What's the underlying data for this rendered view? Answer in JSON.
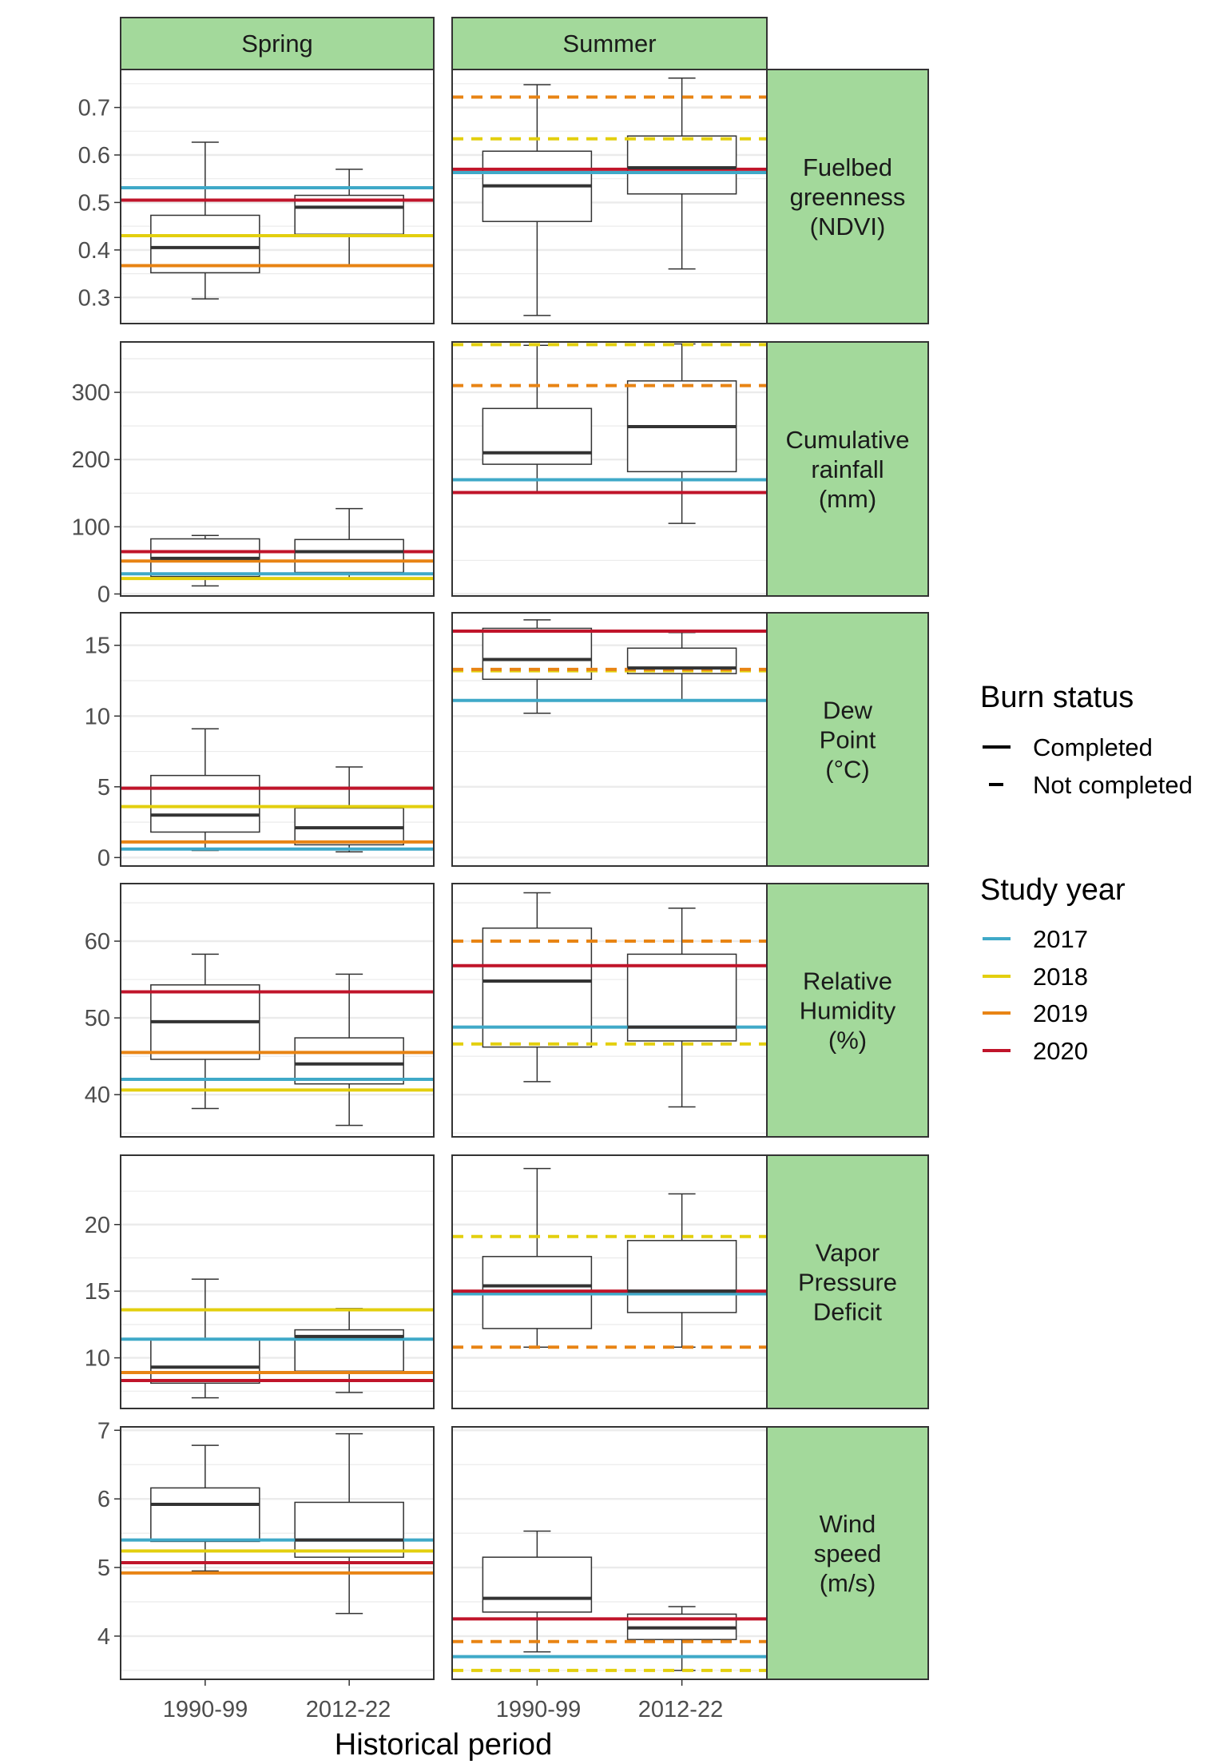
{
  "chart_data": {
    "type": "box",
    "columns": [
      "Spring",
      "Summer"
    ],
    "categories": [
      "1990-99",
      "2012-22"
    ],
    "xlabel": "Historical period",
    "colors": {
      "2017": "#3fa9c8",
      "2018": "#e3cf0e",
      "2019": "#e88414",
      "2020": "#c0142a",
      "strip_fill": "#a3d99b",
      "grid": "#ebebeb",
      "box_median": "#333333"
    },
    "legends": {
      "burn_status": {
        "title": "Burn status",
        "entries": [
          {
            "label": "Completed",
            "style": "solid"
          },
          {
            "label": "Not completed",
            "style": "dashed"
          }
        ]
      },
      "study_year": {
        "title": "Study year",
        "entries": [
          {
            "label": "2017",
            "color": "#3fa9c8"
          },
          {
            "label": "2018",
            "color": "#e3cf0e"
          },
          {
            "label": "2019",
            "color": "#e88414"
          },
          {
            "label": "2020",
            "color": "#c0142a"
          }
        ]
      }
    },
    "rows": [
      {
        "label": [
          "Fuelbed",
          "greenness",
          "(NDVI)"
        ],
        "ylim": [
          0.245,
          0.78
        ],
        "major_ticks": [
          0.3,
          0.4,
          0.5,
          0.6,
          0.7
        ],
        "minor_ticks": [
          0.25,
          0.35,
          0.45,
          0.55,
          0.65,
          0.75
        ],
        "tick_labels": [
          "0.3",
          "0.4",
          "0.5",
          "0.6",
          "0.7"
        ],
        "panels": {
          "Spring": {
            "boxes": [
              {
                "period": "1990-99",
                "min": 0.297,
                "q1": 0.352,
                "median": 0.405,
                "q3": 0.473,
                "max": 0.627
              },
              {
                "period": "2012-22",
                "min": 0.367,
                "q1": 0.433,
                "median": 0.49,
                "q3": 0.515,
                "max": 0.57
              }
            ],
            "lines": [
              {
                "year": "2017",
                "value": 0.531,
                "status": "Completed"
              },
              {
                "year": "2018",
                "value": 0.43,
                "status": "Completed"
              },
              {
                "year": "2019",
                "value": 0.367,
                "status": "Completed"
              },
              {
                "year": "2020",
                "value": 0.505,
                "status": "Completed"
              }
            ]
          },
          "Summer": {
            "boxes": [
              {
                "period": "1990-99",
                "min": 0.262,
                "q1": 0.46,
                "median": 0.535,
                "q3": 0.608,
                "max": 0.748
              },
              {
                "period": "2012-22",
                "min": 0.36,
                "q1": 0.518,
                "median": 0.573,
                "q3": 0.64,
                "max": 0.762
              }
            ],
            "lines": [
              {
                "year": "2017",
                "value": 0.563,
                "status": "Completed"
              },
              {
                "year": "2018",
                "value": 0.634,
                "status": "Not completed"
              },
              {
                "year": "2019",
                "value": 0.722,
                "status": "Not completed"
              },
              {
                "year": "2020",
                "value": 0.57,
                "status": "Completed"
              }
            ]
          }
        }
      },
      {
        "label": [
          "Cumulative",
          "rainfall",
          "(mm)"
        ],
        "ylim": [
          -3,
          375
        ],
        "major_ticks": [
          0,
          100,
          200,
          300
        ],
        "minor_ticks": [
          50,
          150,
          250,
          350
        ],
        "tick_labels": [
          "0",
          "100",
          "200",
          "300"
        ],
        "panels": {
          "Spring": {
            "boxes": [
              {
                "period": "1990-99",
                "min": 12,
                "q1": 26,
                "median": 53,
                "q3": 82,
                "max": 87
              },
              {
                "period": "2012-22",
                "min": 24,
                "q1": 32,
                "median": 63,
                "q3": 81,
                "max": 127
              }
            ],
            "lines": [
              {
                "year": "2017",
                "value": 30,
                "status": "Completed"
              },
              {
                "year": "2018",
                "value": 23,
                "status": "Completed"
              },
              {
                "year": "2019",
                "value": 49,
                "status": "Completed"
              },
              {
                "year": "2020",
                "value": 63,
                "status": "Completed"
              }
            ]
          },
          "Summer": {
            "boxes": [
              {
                "period": "1990-99",
                "min": 150,
                "q1": 193,
                "median": 210,
                "q3": 276,
                "max": 370
              },
              {
                "period": "2012-22",
                "min": 105,
                "q1": 182,
                "median": 249,
                "q3": 317,
                "max": 372
              }
            ],
            "lines": [
              {
                "year": "2017",
                "value": 170,
                "status": "Completed"
              },
              {
                "year": "2018",
                "value": 371,
                "status": "Not completed"
              },
              {
                "year": "2019",
                "value": 310,
                "status": "Not completed"
              },
              {
                "year": "2020",
                "value": 151,
                "status": "Completed"
              }
            ]
          }
        }
      },
      {
        "label": [
          "Dew",
          "Point",
          "(°C)"
        ],
        "ylim": [
          -0.6,
          17.3
        ],
        "major_ticks": [
          0,
          5,
          10,
          15
        ],
        "minor_ticks": [
          2.5,
          7.5,
          12.5
        ],
        "tick_labels": [
          "0",
          "5",
          "10",
          "15"
        ],
        "panels": {
          "Spring": {
            "boxes": [
              {
                "period": "1990-99",
                "min": 0.5,
                "q1": 1.8,
                "median": 3.0,
                "q3": 5.8,
                "max": 9.1
              },
              {
                "period": "2012-22",
                "min": 0.4,
                "q1": 0.9,
                "median": 2.1,
                "q3": 3.5,
                "max": 6.4
              }
            ],
            "lines": [
              {
                "year": "2017",
                "value": 0.6,
                "status": "Completed"
              },
              {
                "year": "2018",
                "value": 3.6,
                "status": "Completed"
              },
              {
                "year": "2019",
                "value": 1.1,
                "status": "Completed"
              },
              {
                "year": "2020",
                "value": 4.9,
                "status": "Completed"
              }
            ]
          },
          "Summer": {
            "boxes": [
              {
                "period": "1990-99",
                "min": 10.2,
                "q1": 12.6,
                "median": 14.0,
                "q3": 16.2,
                "max": 16.8
              },
              {
                "period": "2012-22",
                "min": 11.1,
                "q1": 13.0,
                "median": 13.4,
                "q3": 14.8,
                "max": 15.9
              }
            ],
            "lines": [
              {
                "year": "2017",
                "value": 11.1,
                "status": "Completed"
              },
              {
                "year": "2018",
                "value": 13.2,
                "status": "Not completed"
              },
              {
                "year": "2019",
                "value": 13.3,
                "status": "Not completed"
              },
              {
                "year": "2020",
                "value": 16.0,
                "status": "Completed"
              }
            ]
          }
        }
      },
      {
        "label": [
          "Relative",
          "Humidity",
          "(%)"
        ],
        "ylim": [
          34.5,
          67.5
        ],
        "major_ticks": [
          40,
          50,
          60
        ],
        "minor_ticks": [
          35,
          45,
          55,
          65
        ],
        "tick_labels": [
          "40",
          "50",
          "60"
        ],
        "panels": {
          "Spring": {
            "boxes": [
              {
                "period": "1990-99",
                "min": 38.2,
                "q1": 44.6,
                "median": 49.5,
                "q3": 54.3,
                "max": 58.3
              },
              {
                "period": "2012-22",
                "min": 36.0,
                "q1": 41.4,
                "median": 44.0,
                "q3": 47.4,
                "max": 55.7
              }
            ],
            "lines": [
              {
                "year": "2017",
                "value": 42.0,
                "status": "Completed"
              },
              {
                "year": "2018",
                "value": 40.6,
                "status": "Completed"
              },
              {
                "year": "2019",
                "value": 45.5,
                "status": "Completed"
              },
              {
                "year": "2020",
                "value": 53.4,
                "status": "Completed"
              }
            ]
          },
          "Summer": {
            "boxes": [
              {
                "period": "1990-99",
                "min": 41.7,
                "q1": 46.2,
                "median": 54.8,
                "q3": 61.7,
                "max": 66.3
              },
              {
                "period": "2012-22",
                "min": 38.4,
                "q1": 47.0,
                "median": 48.8,
                "q3": 58.3,
                "max": 64.3
              }
            ],
            "lines": [
              {
                "year": "2017",
                "value": 48.8,
                "status": "Completed"
              },
              {
                "year": "2018",
                "value": 46.6,
                "status": "Not completed"
              },
              {
                "year": "2019",
                "value": 60.0,
                "status": "Not completed"
              },
              {
                "year": "2020",
                "value": 56.8,
                "status": "Completed"
              }
            ]
          }
        }
      },
      {
        "label": [
          "Vapor",
          "Pressure",
          "Deficit"
        ],
        "ylim": [
          6.2,
          25.2
        ],
        "major_ticks": [
          10,
          15,
          20
        ],
        "minor_ticks": [
          7.5,
          12.5,
          17.5,
          22.5
        ],
        "tick_labels": [
          "10",
          "15",
          "20"
        ],
        "panels": {
          "Spring": {
            "boxes": [
              {
                "period": "1990-99",
                "min": 7.0,
                "q1": 8.1,
                "median": 9.3,
                "q3": 11.4,
                "max": 15.9
              },
              {
                "period": "2012-22",
                "min": 7.4,
                "q1": 9.0,
                "median": 11.6,
                "q3": 12.1,
                "max": 13.7
              }
            ],
            "lines": [
              {
                "year": "2017",
                "value": 11.4,
                "status": "Completed"
              },
              {
                "year": "2018",
                "value": 13.6,
                "status": "Completed"
              },
              {
                "year": "2019",
                "value": 8.9,
                "status": "Completed"
              },
              {
                "year": "2020",
                "value": 8.3,
                "status": "Completed"
              }
            ]
          },
          "Summer": {
            "boxes": [
              {
                "period": "1990-99",
                "min": 10.8,
                "q1": 12.2,
                "median": 15.4,
                "q3": 17.6,
                "max": 24.2
              },
              {
                "period": "2012-22",
                "min": 10.8,
                "q1": 13.4,
                "median": 15.0,
                "q3": 18.8,
                "max": 22.3
              }
            ],
            "lines": [
              {
                "year": "2017",
                "value": 14.8,
                "status": "Completed"
              },
              {
                "year": "2018",
                "value": 19.1,
                "status": "Not completed"
              },
              {
                "year": "2019",
                "value": 10.8,
                "status": "Not completed"
              },
              {
                "year": "2020",
                "value": 15.0,
                "status": "Completed"
              }
            ]
          }
        }
      },
      {
        "label": [
          "Wind",
          "speed",
          "(m/s)"
        ],
        "ylim": [
          3.37,
          7.05
        ],
        "major_ticks": [
          4,
          5,
          6,
          7
        ],
        "minor_ticks": [
          3.5,
          4.5,
          5.5,
          6.5
        ],
        "tick_labels": [
          "4",
          "5",
          "6",
          "7"
        ],
        "panels": {
          "Spring": {
            "boxes": [
              {
                "period": "1990-99",
                "min": 4.95,
                "q1": 5.38,
                "median": 5.92,
                "q3": 6.16,
                "max": 6.78
              },
              {
                "period": "2012-22",
                "min": 4.33,
                "q1": 5.15,
                "median": 5.4,
                "q3": 5.95,
                "max": 6.95
              }
            ],
            "lines": [
              {
                "year": "2017",
                "value": 5.4,
                "status": "Completed"
              },
              {
                "year": "2018",
                "value": 5.24,
                "status": "Completed"
              },
              {
                "year": "2019",
                "value": 4.92,
                "status": "Completed"
              },
              {
                "year": "2020",
                "value": 5.07,
                "status": "Completed"
              }
            ]
          },
          "Summer": {
            "boxes": [
              {
                "period": "1990-99",
                "min": 3.77,
                "q1": 4.35,
                "median": 4.55,
                "q3": 5.15,
                "max": 5.53
              },
              {
                "period": "2012-22",
                "min": 3.5,
                "q1": 3.95,
                "median": 4.12,
                "q3": 4.32,
                "max": 4.43
              }
            ],
            "lines": [
              {
                "year": "2017",
                "value": 3.7,
                "status": "Completed"
              },
              {
                "year": "2018",
                "value": 3.5,
                "status": "Not completed"
              },
              {
                "year": "2019",
                "value": 3.92,
                "status": "Not completed"
              },
              {
                "year": "2020",
                "value": 4.25,
                "status": "Completed"
              }
            ]
          }
        }
      }
    ]
  }
}
